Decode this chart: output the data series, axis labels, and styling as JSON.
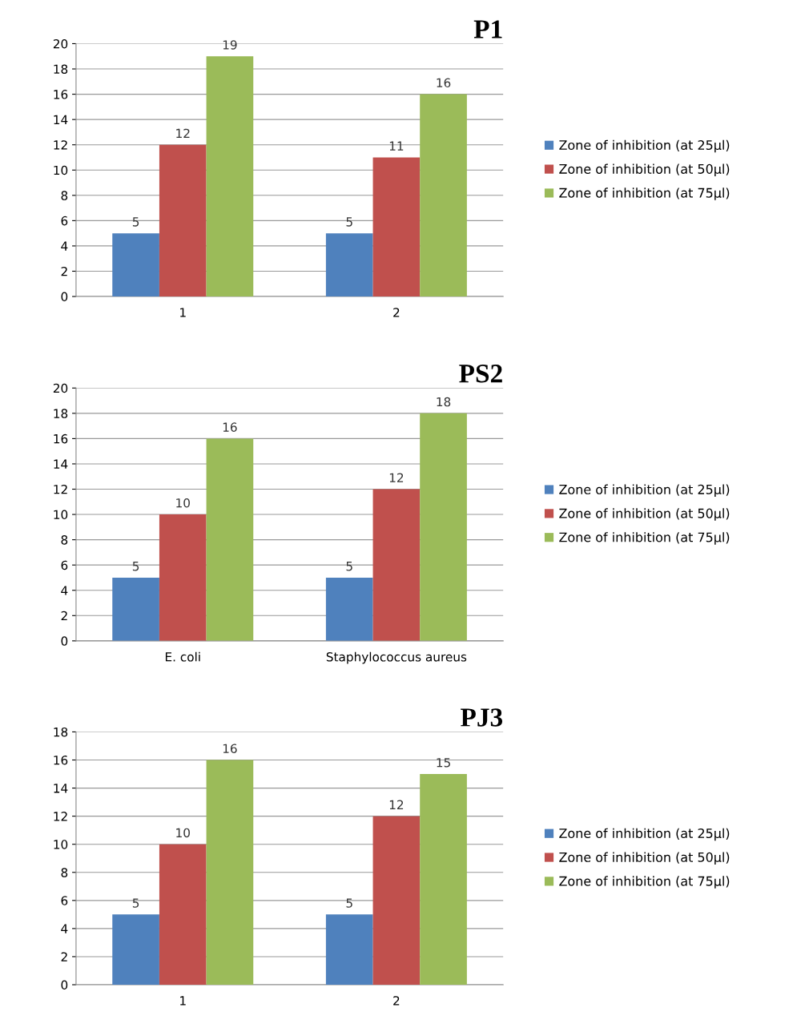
{
  "chart_data": [
    {
      "type": "bar",
      "title": "P1",
      "categories": [
        "1",
        "2"
      ],
      "series": [
        {
          "name": "Zone of inhibition (at 25µl)",
          "color": "#4f81bd",
          "values": [
            5,
            5
          ]
        },
        {
          "name": "Zone of inhibition (at 50µl)",
          "color": "#c0504d",
          "values": [
            12,
            11
          ]
        },
        {
          "name": "Zone of inhibition (at 75µl)",
          "color": "#9bbb59",
          "values": [
            19,
            16
          ]
        }
      ],
      "ylim": [
        0,
        20
      ],
      "yticks": [
        0,
        2,
        4,
        6,
        8,
        10,
        12,
        14,
        16,
        18,
        20
      ],
      "grid": "y",
      "legend": "right",
      "data_labels": true
    },
    {
      "type": "bar",
      "title": "PS2",
      "categories": [
        "E. coli",
        "Staphylococcus aureus"
      ],
      "series": [
        {
          "name": "Zone of inhibition (at 25µl)",
          "color": "#4f81bd",
          "values": [
            5,
            5
          ]
        },
        {
          "name": "Zone of inhibition (at 50µl)",
          "color": "#c0504d",
          "values": [
            10,
            12
          ]
        },
        {
          "name": "Zone of inhibition (at 75µl)",
          "color": "#9bbb59",
          "values": [
            16,
            18
          ]
        }
      ],
      "ylim": [
        0,
        20
      ],
      "yticks": [
        0,
        2,
        4,
        6,
        8,
        10,
        12,
        14,
        16,
        18,
        20
      ],
      "grid": "y",
      "legend": "right",
      "data_labels": true
    },
    {
      "type": "bar",
      "title": "PJ3",
      "categories": [
        "1",
        "2"
      ],
      "series": [
        {
          "name": "Zone of inhibition (at 25µl)",
          "color": "#4f81bd",
          "values": [
            5,
            5
          ]
        },
        {
          "name": "Zone of inhibition (at 50µl)",
          "color": "#c0504d",
          "values": [
            10,
            12
          ]
        },
        {
          "name": "Zone of inhibition (at 75µl)",
          "color": "#9bbb59",
          "values": [
            16,
            15
          ]
        }
      ],
      "ylim": [
        0,
        18
      ],
      "yticks": [
        0,
        2,
        4,
        6,
        8,
        10,
        12,
        14,
        16,
        18
      ],
      "grid": "y",
      "legend": "right",
      "data_labels": true
    }
  ]
}
